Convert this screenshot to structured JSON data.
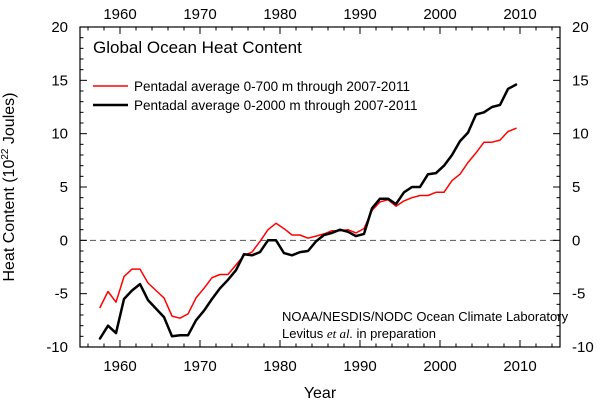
{
  "chart_data": {
    "type": "line",
    "title": "Global Ocean Heat Content",
    "xlabel": "Year",
    "ylabel_main": "Heat Content (10",
    "ylabel_sup": "22",
    "ylabel_tail": " Joules)",
    "xlim": [
      1955,
      2015
    ],
    "ylim": [
      -10,
      20
    ],
    "x_ticks": [
      1960,
      1970,
      1980,
      1990,
      2000,
      2010
    ],
    "x_tick_labels": [
      "1960",
      "1970",
      "1980",
      "1990",
      "2000",
      "2010"
    ],
    "y_ticks": [
      -10,
      -5,
      0,
      5,
      10,
      15,
      20
    ],
    "y_tick_labels": [
      "-10",
      "-5",
      "0",
      "5",
      "10",
      "15",
      "20"
    ],
    "reference_line": {
      "y": 0,
      "style": "dashed",
      "color": "#555555"
    },
    "legend_placement": "upper-left",
    "series": [
      {
        "name": "Pentadal average 0-700 m through 2007-2011",
        "color": "#ff0000",
        "width": 1.5,
        "x": [
          1957.5,
          1958.5,
          1959.5,
          1960.5,
          1961.5,
          1962.5,
          1963.5,
          1964.5,
          1965.5,
          1966.5,
          1967.5,
          1968.5,
          1969.5,
          1970.5,
          1971.5,
          1972.5,
          1973.5,
          1974.5,
          1975.5,
          1976.5,
          1977.5,
          1978.5,
          1979.5,
          1980.5,
          1981.5,
          1982.5,
          1983.5,
          1984.5,
          1985.5,
          1986.5,
          1987.5,
          1988.5,
          1989.5,
          1990.5,
          1991.5,
          1992.5,
          1993.5,
          1994.5,
          1995.5,
          1996.5,
          1997.5,
          1998.5,
          1999.5,
          2000.5,
          2001.5,
          2002.5,
          2003.5,
          2004.5,
          2005.5,
          2006.5,
          2007.5,
          2008.5,
          2009.5
        ],
        "y": [
          -6.3,
          -4.8,
          -5.8,
          -3.4,
          -2.7,
          -2.7,
          -4.0,
          -4.7,
          -5.4,
          -7.1,
          -7.3,
          -6.9,
          -5.4,
          -4.5,
          -3.5,
          -3.2,
          -3.2,
          -2.3,
          -1.4,
          -1.1,
          -0.1,
          1.0,
          1.6,
          1.1,
          0.5,
          0.5,
          0.2,
          0.4,
          0.6,
          0.9,
          0.9,
          1.0,
          0.7,
          1.1,
          2.8,
          3.6,
          3.8,
          3.2,
          3.7,
          4.0,
          4.2,
          4.2,
          4.5,
          4.5,
          5.6,
          6.2,
          7.3,
          8.2,
          9.2,
          9.2,
          9.4,
          10.2,
          10.5
        ]
      },
      {
        "name": "Pentadal average 0-2000 m through 2007-2011",
        "color": "#000000",
        "width": 2.5,
        "x": [
          1957.5,
          1958.5,
          1959.5,
          1960.5,
          1961.5,
          1962.5,
          1963.5,
          1964.5,
          1965.5,
          1966.5,
          1967.5,
          1968.5,
          1969.5,
          1970.5,
          1971.5,
          1972.5,
          1973.5,
          1974.5,
          1975.5,
          1976.5,
          1977.5,
          1978.5,
          1979.5,
          1980.5,
          1981.5,
          1982.5,
          1983.5,
          1984.5,
          1985.5,
          1986.5,
          1987.5,
          1988.5,
          1989.5,
          1990.5,
          1991.5,
          1992.5,
          1993.5,
          1994.5,
          1995.5,
          1996.5,
          1997.5,
          1998.5,
          1999.5,
          2000.5,
          2001.5,
          2002.5,
          2003.5,
          2004.5,
          2005.5,
          2006.5,
          2007.5,
          2008.5,
          2009.5
        ],
        "y": [
          -9.2,
          -8.0,
          -8.7,
          -5.5,
          -4.7,
          -4.1,
          -5.6,
          -6.4,
          -7.2,
          -9.0,
          -8.9,
          -8.9,
          -7.5,
          -6.6,
          -5.5,
          -4.5,
          -3.7,
          -2.8,
          -1.3,
          -1.4,
          -1.1,
          0.0,
          0.0,
          -1.2,
          -1.4,
          -1.1,
          -1.0,
          -0.1,
          0.5,
          0.7,
          1.0,
          0.8,
          0.4,
          0.6,
          3.0,
          3.9,
          3.9,
          3.4,
          4.5,
          5.0,
          5.0,
          6.2,
          6.3,
          7.0,
          8.0,
          9.3,
          10.1,
          11.8,
          12.0,
          12.5,
          12.7,
          14.2,
          14.6
        ]
      }
    ],
    "credits": {
      "line1": "NOAA/NESDIS/NODC Ocean Climate Laboratory",
      "line2_a": "Levitus",
      "line2_italic": "et al.",
      "line2_b": " in preparation"
    }
  }
}
